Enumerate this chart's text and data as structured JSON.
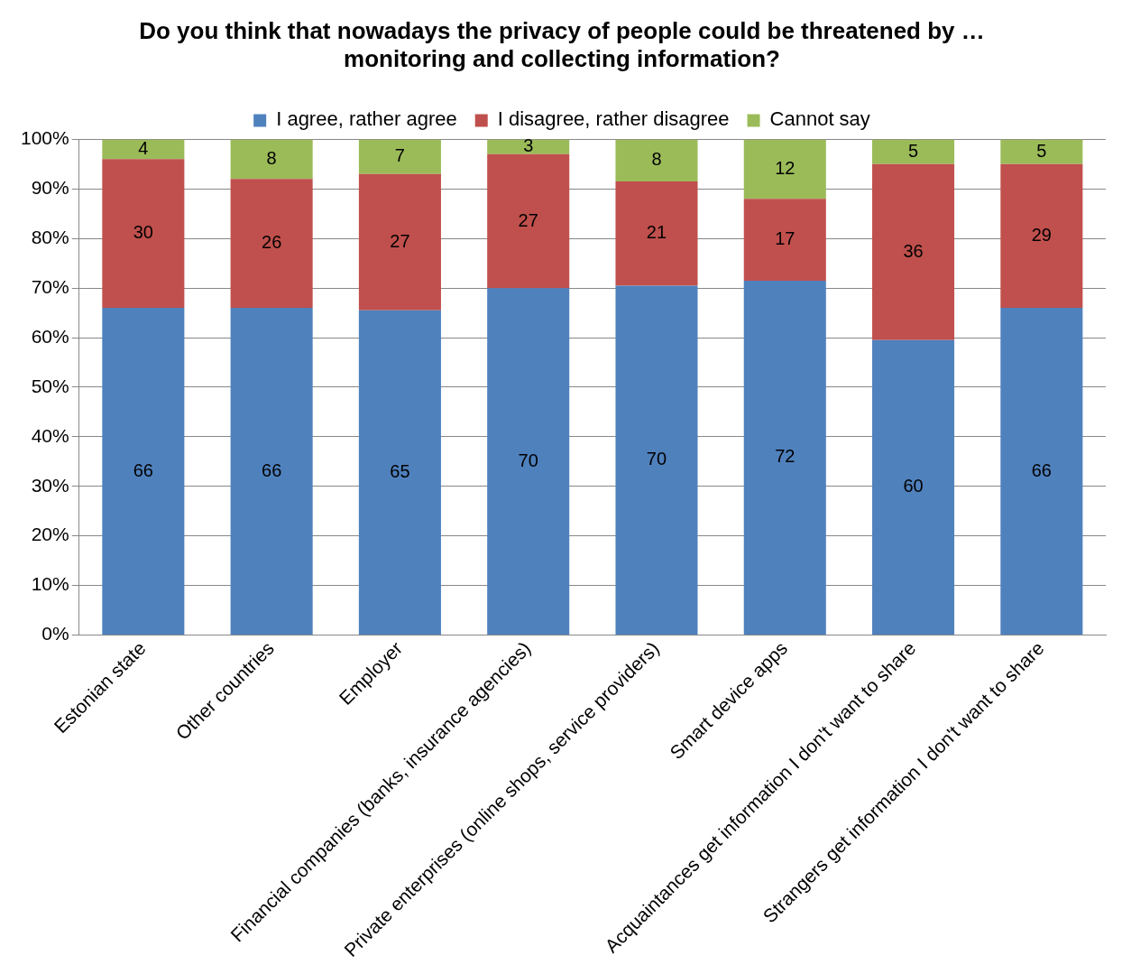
{
  "chart_data": {
    "type": "bar",
    "stacked": true,
    "title": "Do you think that nowadays the privacy of people could be threatened by … monitoring and collecting information?",
    "categories": [
      "Estonian state",
      "Other countries",
      "Employer",
      "Financial companies (banks, insurance agencies)",
      "Private enterprises (online shops, service providers)",
      "Smart device apps",
      "Acquaintances get information I don't want to share",
      "Strangers get information I don't want to share"
    ],
    "series": [
      {
        "name": "I agree, rather agree",
        "color": "#4f81bd",
        "values": [
          66,
          66,
          65.5,
          70,
          70.5,
          71.5,
          59.5,
          66
        ],
        "value_labels": [
          "66",
          "66",
          "65",
          "70",
          "70",
          "72",
          "60",
          "66"
        ]
      },
      {
        "name": "I disagree, rather disagree",
        "color": "#c0504d",
        "values": [
          30,
          26,
          27.5,
          27,
          21,
          16.5,
          35.5,
          29
        ],
        "value_labels": [
          "30",
          "26",
          "27",
          "27",
          "21",
          "17",
          "36",
          "29"
        ]
      },
      {
        "name": "Cannot say",
        "color": "#9bbb59",
        "values": [
          4,
          8,
          7,
          3,
          8.5,
          12,
          5,
          5
        ],
        "value_labels": [
          "4",
          "8",
          "7",
          "3",
          "8",
          "12",
          "5",
          "5"
        ]
      }
    ],
    "ylim": [
      0,
      100
    ],
    "yticks": [
      {
        "value": 0,
        "label": "0%"
      },
      {
        "value": 10,
        "label": "10%"
      },
      {
        "value": 20,
        "label": "20%"
      },
      {
        "value": 30,
        "label": "30%"
      },
      {
        "value": 40,
        "label": "40%"
      },
      {
        "value": 50,
        "label": "50%"
      },
      {
        "value": 60,
        "label": "60%"
      },
      {
        "value": 70,
        "label": "70%"
      },
      {
        "value": 80,
        "label": "80%"
      },
      {
        "value": 90,
        "label": "90%"
      },
      {
        "value": 100,
        "label": "100%"
      }
    ],
    "grid": "y",
    "legend": "top"
  }
}
